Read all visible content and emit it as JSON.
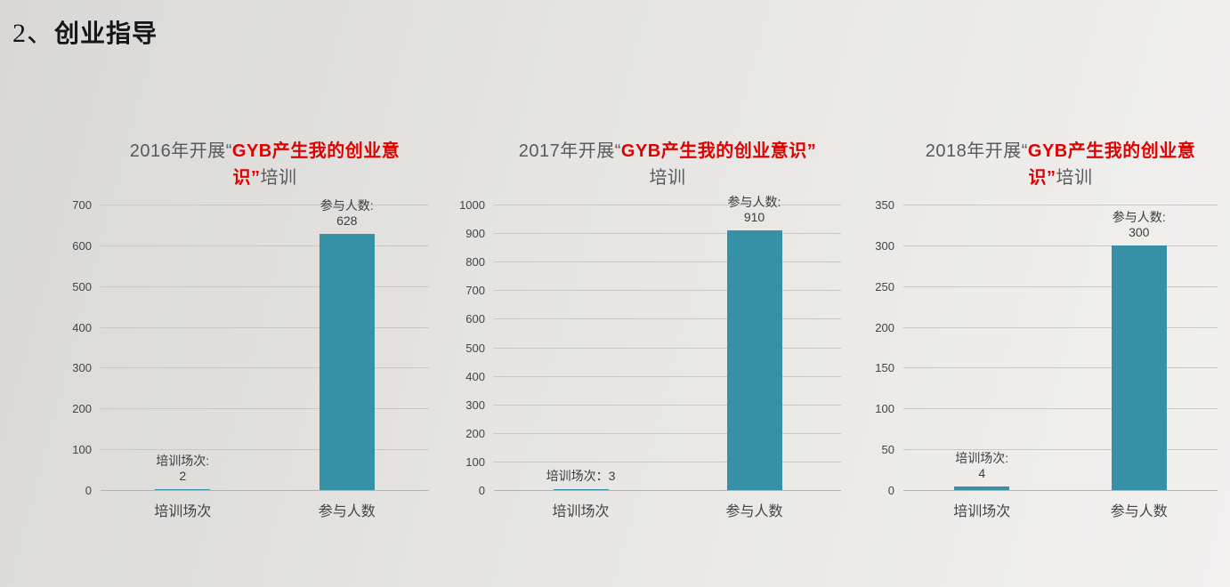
{
  "header": {
    "number": "2、",
    "title": "创业指导"
  },
  "accent_red": "#e10000",
  "title_gray": "#595959",
  "bar_color": "#3690a6",
  "chart_data": [
    {
      "type": "bar",
      "title": "2016年开展“GYB产生我的创业意识”培训",
      "title_lines": [
        [
          {
            "text": "2016年开展“",
            "red": false
          },
          {
            "text": "GYB产生我的创业意",
            "red": true
          }
        ],
        [
          {
            "text": "识”",
            "red": true
          },
          {
            "text": "培训",
            "red": false
          }
        ]
      ],
      "categories": [
        "培训场次",
        "参与人数"
      ],
      "values": [
        2,
        628
      ],
      "ylim": [
        0,
        700
      ],
      "ytick_step": 100,
      "grid": true,
      "legend": "none",
      "data_labels": [
        [
          "培训场次:",
          "2"
        ],
        [
          "参与人数:",
          "628"
        ]
      ]
    },
    {
      "type": "bar",
      "title": "2017年开展“GYB产生我的创业意识”培训",
      "title_lines": [
        [
          {
            "text": "2017年开展“",
            "red": false
          },
          {
            "text": "GYB产生我的创业意识”",
            "red": true
          }
        ],
        [
          {
            "text": "培训",
            "red": false
          }
        ]
      ],
      "categories": [
        "培训场次",
        "参与人数"
      ],
      "values": [
        3,
        910
      ],
      "ylim": [
        0,
        1000
      ],
      "ytick_step": 100,
      "grid": true,
      "legend": "none",
      "data_labels": [
        [
          "培训场次：3"
        ],
        [
          "参与人数:",
          "910"
        ]
      ]
    },
    {
      "type": "bar",
      "title": "2018年开展“GYB产生我的创业意识”培训",
      "title_lines": [
        [
          {
            "text": "2018年开展“",
            "red": false
          },
          {
            "text": "GYB产生我的创业意",
            "red": true
          }
        ],
        [
          {
            "text": "识”",
            "red": true
          },
          {
            "text": "培训",
            "red": false
          }
        ]
      ],
      "categories": [
        "培训场次",
        "参与人数"
      ],
      "values": [
        4,
        300
      ],
      "ylim": [
        0,
        350
      ],
      "ytick_step": 50,
      "grid": true,
      "legend": "none",
      "data_labels": [
        [
          "培训场次:",
          "4"
        ],
        [
          "参与人数:",
          "300"
        ]
      ]
    }
  ]
}
